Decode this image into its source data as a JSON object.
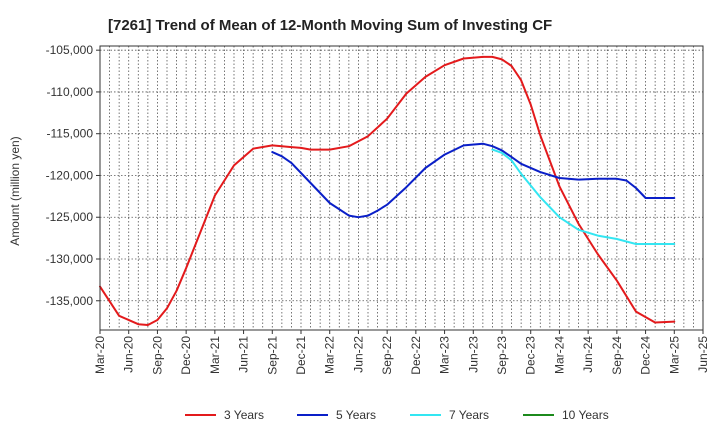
{
  "chart_data": {
    "type": "line",
    "title": "[7261]  Trend of Mean of 12-Month Moving Sum of Investing CF",
    "xlabel": "",
    "ylabel": "Amount (million yen)",
    "ylim": [
      -138500,
      -104500
    ],
    "yticks": [
      -135000,
      -130000,
      -125000,
      -120000,
      -115000,
      -110000,
      -105000
    ],
    "ytick_labels": [
      "-135,000",
      "-130,000",
      "-125,000",
      "-120,000",
      "-115,000",
      "-110,000",
      "-105,000"
    ],
    "xticks": [
      0,
      3,
      6,
      9,
      12,
      15,
      18,
      21,
      24,
      27,
      30,
      33,
      36,
      39,
      42,
      45,
      48,
      51,
      54,
      57,
      60,
      63
    ],
    "xtick_labels": [
      "Mar-20",
      "Jun-20",
      "Sep-20",
      "Dec-20",
      "Mar-21",
      "Jun-21",
      "Sep-21",
      "Dec-21",
      "Mar-22",
      "Jun-22",
      "Sep-22",
      "Dec-22",
      "Mar-23",
      "Jun-23",
      "Sep-23",
      "Dec-23",
      "Mar-24",
      "Jun-24",
      "Sep-24",
      "Dec-24",
      "Mar-25",
      "Jun-25"
    ],
    "series": [
      {
        "name": "3 Years",
        "color": "#e31a1c",
        "x": [
          0,
          2,
          4,
          5,
          6,
          7,
          8,
          9,
          10,
          12,
          14,
          16,
          18,
          19,
          20,
          21,
          22,
          24,
          26,
          28,
          30,
          32,
          34,
          36,
          38,
          40,
          41,
          42,
          43,
          44,
          45,
          46,
          48,
          50,
          52,
          54,
          56,
          58,
          60
        ],
        "values": [
          -133300,
          -136800,
          -137800,
          -137900,
          -137300,
          -135900,
          -133800,
          -131100,
          -128200,
          -122400,
          -118800,
          -116800,
          -116400,
          -116500,
          -116600,
          -116700,
          -116900,
          -116900,
          -116500,
          -115300,
          -113200,
          -110200,
          -108200,
          -106800,
          -106000,
          -105800,
          -105800,
          -106100,
          -106900,
          -108600,
          -111500,
          -115200,
          -121300,
          -125800,
          -129400,
          -132600,
          -136300,
          -137600,
          -137500
        ]
      },
      {
        "name": "5 Years",
        "color": "#0a1fc8",
        "x": [
          18,
          19,
          20,
          22,
          24,
          26,
          27,
          28,
          29,
          30,
          32,
          34,
          36,
          38,
          40,
          41,
          42,
          43,
          44,
          46,
          48,
          50,
          52,
          54,
          55,
          56,
          57,
          58,
          59,
          60
        ],
        "values": [
          -117200,
          -117700,
          -118500,
          -120900,
          -123300,
          -124800,
          -125000,
          -124800,
          -124200,
          -123500,
          -121400,
          -119100,
          -117500,
          -116400,
          -116200,
          -116500,
          -117000,
          -117800,
          -118600,
          -119600,
          -120300,
          -120500,
          -120400,
          -120400,
          -120600,
          -121500,
          -122700,
          -122700,
          -122700,
          -122700
        ]
      },
      {
        "name": "7 Years",
        "color": "#33e6f2",
        "x": [
          41,
          42,
          43,
          44,
          46,
          48,
          50,
          52,
          54,
          56,
          58,
          60
        ],
        "values": [
          -116900,
          -117300,
          -118200,
          -119800,
          -122600,
          -125000,
          -126500,
          -127200,
          -127600,
          -128200,
          -128200,
          -128200
        ]
      },
      {
        "name": "10 Years",
        "color": "#1c8a1c",
        "x": [],
        "values": []
      }
    ],
    "legend_position": "bottom",
    "grid": true
  }
}
